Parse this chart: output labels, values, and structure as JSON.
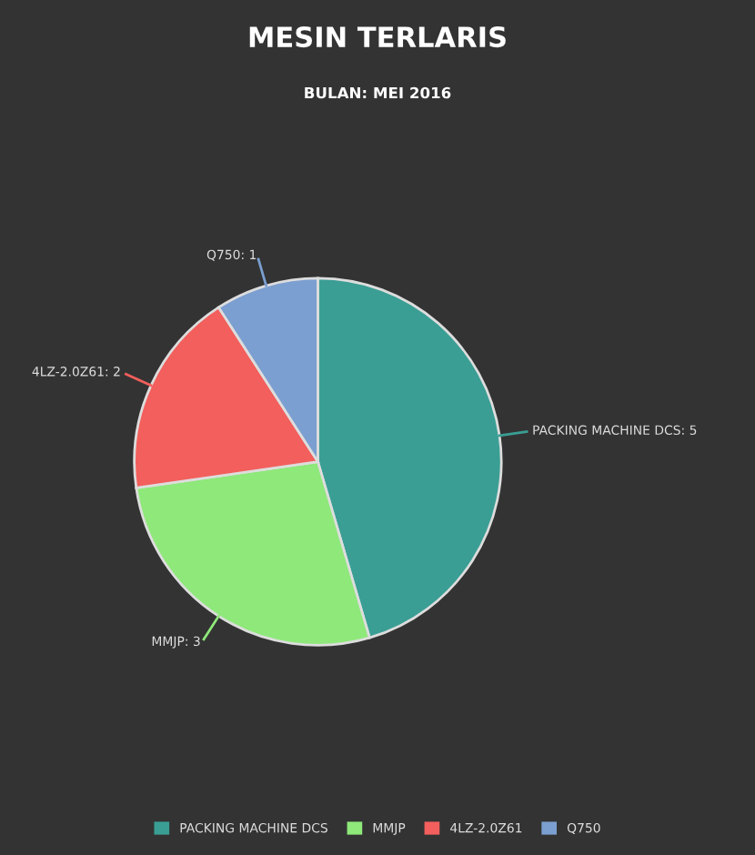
{
  "chart_data": {
    "type": "pie",
    "title": "MESIN TERLARIS",
    "subtitle": "BULAN: MEI 2016",
    "categories": [
      "PACKING MACHINE DCS",
      "MMJP",
      "4LZ-2.0Z61",
      "Q750"
    ],
    "values": [
      5,
      3,
      2,
      1
    ],
    "colors": [
      "#3a9e94",
      "#8ee87a",
      "#f25f5c",
      "#7b9fd0"
    ],
    "value_labels": [
      "PACKING MACHINE DCS: 5",
      "MMJP: 3",
      "4LZ-2.0Z61: 2",
      "Q750: 1"
    ],
    "legend": "bottom"
  }
}
